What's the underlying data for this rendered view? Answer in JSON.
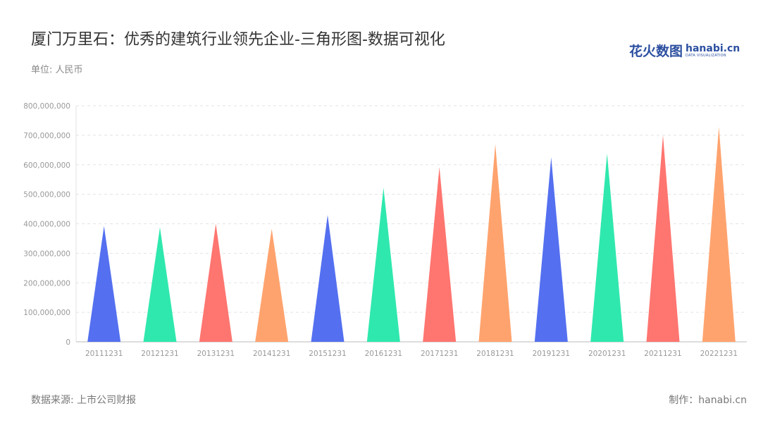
{
  "header": {
    "title": "厦门万里石：优秀的建筑行业领先企业-三角形图-数据可视化",
    "unit": "单位: 人民币"
  },
  "logo": {
    "cn": "花火数图",
    "en": "hanabi.cn",
    "en_sub": "DATA VISUALIZATION"
  },
  "footer": {
    "source": "数据来源: 上市公司财报",
    "credit": "制作：hanabi.cn"
  },
  "colors": {
    "palette": [
      "#5470f0",
      "#2fe8ad",
      "#ff7570",
      "#ffa36e"
    ],
    "grid": "#e3e3e3",
    "axis": "#bbbbbb"
  },
  "chart_data": {
    "type": "bar",
    "style": "triangle",
    "categories": [
      "20111231",
      "20121231",
      "20131231",
      "20141231",
      "20151231",
      "20161231",
      "20171231",
      "20181231",
      "20191231",
      "20201231",
      "20211231",
      "20221231"
    ],
    "values": [
      392000000,
      388000000,
      400000000,
      383000000,
      430000000,
      522000000,
      592000000,
      670000000,
      625000000,
      638000000,
      700000000,
      728000000
    ],
    "ylim": [
      0,
      800000000
    ],
    "yticks": [
      0,
      100000000,
      200000000,
      300000000,
      400000000,
      500000000,
      600000000,
      700000000,
      800000000
    ],
    "ytick_labels": [
      "0",
      "100,000,000",
      "200,000,000",
      "300,000,000",
      "400,000,000",
      "500,000,000",
      "600,000,000",
      "700,000,000",
      "800,000,000"
    ],
    "grid": true,
    "legend": "none"
  }
}
